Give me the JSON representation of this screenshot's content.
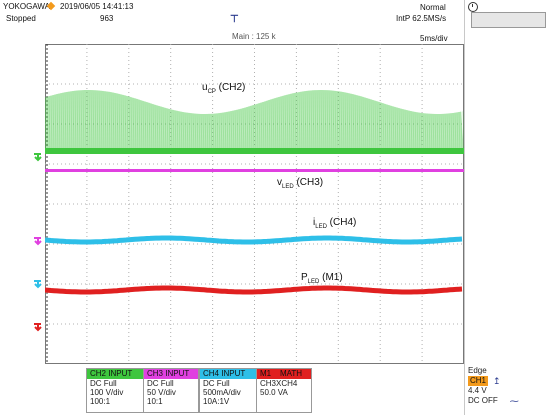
{
  "header": {
    "brand": "YOKOGAWA",
    "datetime": "2019/06/05 14:41:13",
    "state": "Stopped",
    "acq_count": "963",
    "acq_mode": "Normal",
    "sample_rate": "IntP  62.5MS/s",
    "main_length": "Main : 125 k",
    "timebase": "5ms/div"
  },
  "traces": {
    "ucp": {
      "base": "u",
      "sub": "CP",
      "suffix": " (CH2)"
    },
    "vled": {
      "base": "v",
      "sub": "LED",
      "suffix": " (CH3)"
    },
    "iled": {
      "base": "i",
      "sub": "LED",
      "suffix": " (CH4)"
    },
    "pled": {
      "base": "P",
      "sub": "LED",
      "suffix": " (M1)"
    }
  },
  "channels": [
    {
      "head": "CH2 INPUT",
      "l1": "DC Full",
      "l2": "100 V/div",
      "l3": "100:1",
      "color": "#3ec63e"
    },
    {
      "head": "CH3 INPUT",
      "l1": "DC Full",
      "l2": "50 V/div",
      "l3": "10:1",
      "color": "#e040e0"
    },
    {
      "head": "CH4 INPUT",
      "l1": "DC Full",
      "l2": "500mA/div",
      "l3": "10A:1V",
      "color": "#2ebfe8"
    },
    {
      "head_a": "M1",
      "head_b": "MATH",
      "l1": "CH3XCH4",
      "l2": "50.0 VA",
      "color": "#e02020"
    }
  ],
  "trigger": {
    "mode": "Edge",
    "source": "CH1",
    "level": "4.4 V",
    "coupling": "DC OFF"
  },
  "colors": {
    "ch2": "#3ec63e",
    "ch3": "#e040e0",
    "ch4": "#2ebfe8",
    "math": "#e02020",
    "grid": "#b0b0b0",
    "trigger": "#f39a1c"
  }
}
